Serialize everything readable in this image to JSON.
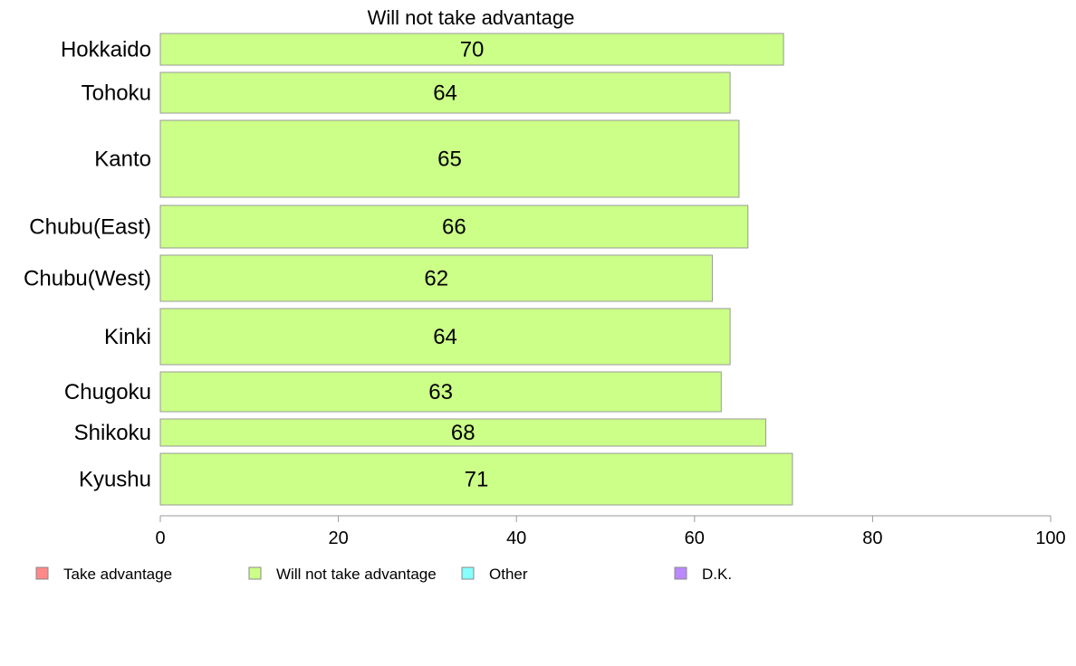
{
  "chart_data": {
    "type": "bar",
    "orientation": "horizontal",
    "title": "Will not take advantage",
    "categories": [
      "Hokkaido",
      "Tohoku",
      "Kanto",
      "Chubu(East)",
      "Chubu(West)",
      "Kinki",
      "Chugoku",
      "Shikoku",
      "Kyushu"
    ],
    "series": [
      {
        "name": "Will not take advantage",
        "values": [
          70,
          64,
          65,
          66,
          62,
          64,
          63,
          68,
          71
        ],
        "color": "#ccff88"
      }
    ],
    "xlim": [
      0,
      100
    ],
    "xticks": [
      0,
      20,
      40,
      60,
      80,
      100
    ],
    "grid": false,
    "legend_position": "bottom",
    "legend": [
      {
        "label": "Take advantage",
        "color": "#ff8888"
      },
      {
        "label": "Will not take advantage",
        "color": "#ccff88"
      },
      {
        "label": "Other",
        "color": "#88ffff"
      },
      {
        "label": "D.K.",
        "color": "#bb88ff"
      }
    ]
  }
}
